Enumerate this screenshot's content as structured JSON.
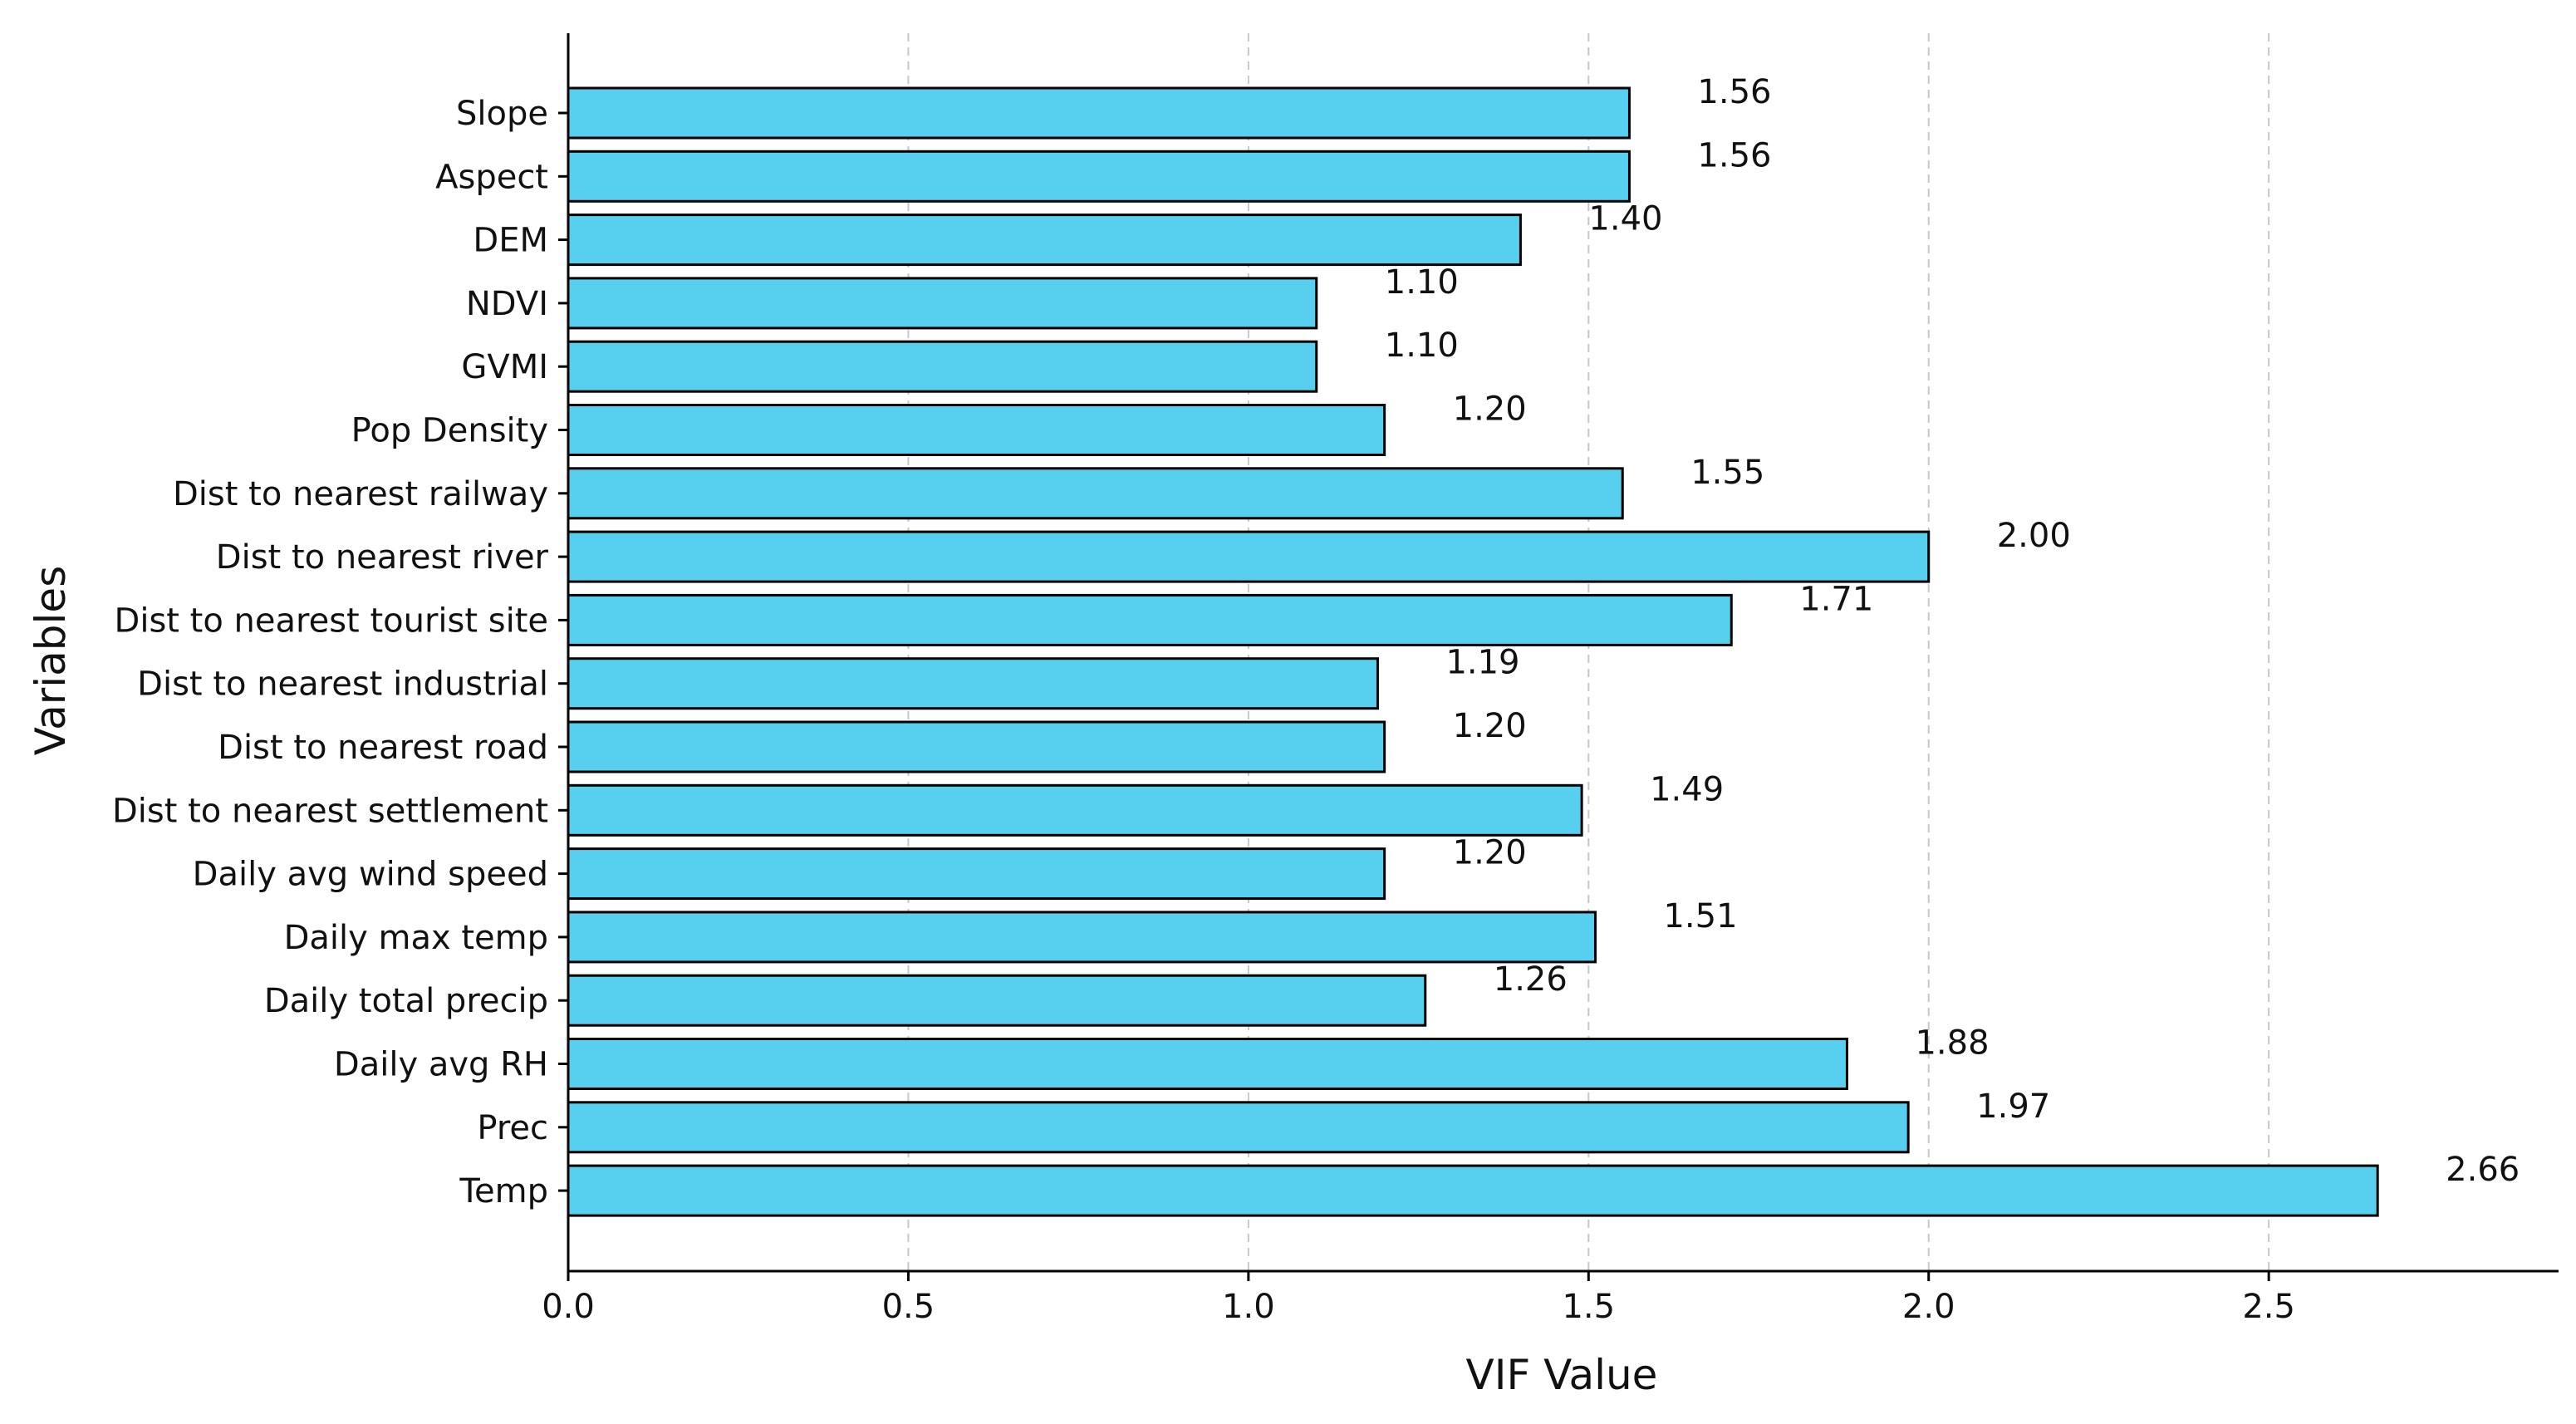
{
  "chart_data": {
    "type": "bar",
    "orientation": "horizontal",
    "categories": [
      "Slope",
      "Aspect",
      "DEM",
      "NDVI",
      "GVMI",
      "Pop Density",
      "Dist to nearest railway",
      "Dist to nearest river",
      "Dist to nearest tourist site",
      "Dist to nearest industrial",
      "Dist to nearest road",
      "Dist to nearest settlement",
      "Daily avg wind speed",
      "Daily max temp",
      "Daily total precip",
      "Daily avg RH",
      "Prec",
      "Temp"
    ],
    "values": [
      1.56,
      1.56,
      1.4,
      1.1,
      1.1,
      1.2,
      1.55,
      2.0,
      1.71,
      1.19,
      1.2,
      1.49,
      1.2,
      1.51,
      1.26,
      1.88,
      1.97,
      2.66
    ],
    "value_labels": [
      "1.56",
      "1.56",
      "1.40",
      "1.10",
      "1.10",
      "1.20",
      "1.55",
      "2.00",
      "1.71",
      "1.19",
      "1.20",
      "1.49",
      "1.20",
      "1.51",
      "1.26",
      "1.88",
      "1.97",
      "2.66"
    ],
    "title": "",
    "xlabel": "VIF Value",
    "ylabel": "Variables",
    "xlim": [
      0,
      2.926
    ],
    "xticks": [
      0,
      0.5,
      1.0,
      1.5,
      2.0,
      2.5
    ],
    "xtick_labels": [
      "0.0",
      "0.5",
      "1.0",
      "1.5",
      "2.0",
      "2.5"
    ],
    "grid": "vertical dashed",
    "bar_color": "#57cfee",
    "bar_edge_color": "#000000",
    "grid_color": "#c8c8c8"
  }
}
